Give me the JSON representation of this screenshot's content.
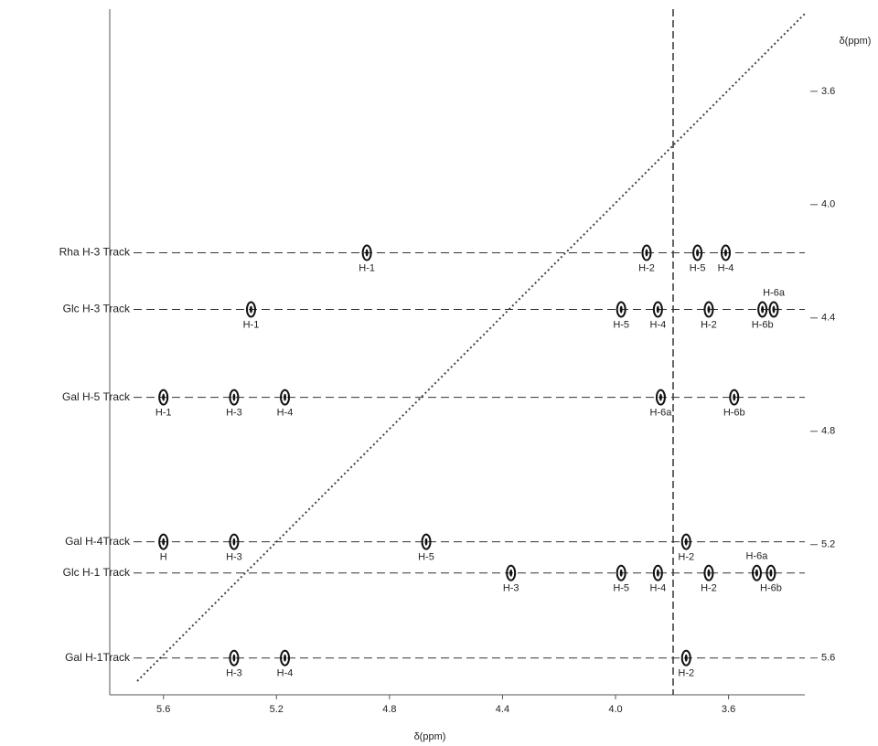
{
  "chart_data": {
    "type": "contour",
    "x_label": "δ(ppm)",
    "y_label": "δ(ppm)",
    "xlim": [
      5.79,
      3.33
    ],
    "ylim": [
      3.31,
      5.73
    ],
    "xticks": [
      5.6,
      5.2,
      4.8,
      4.4,
      {
        "value": 4,
        "label": "4.0"
      },
      3.6
    ],
    "yticks": [
      3.6,
      {
        "value": 4,
        "label": "4.0"
      },
      4.4,
      4.8,
      5.2,
      5.6
    ],
    "color": "#111111",
    "tracks": [
      {
        "name": "Rha H-3 Track",
        "y": 4.17,
        "peaks": [
          {
            "label": "H-1",
            "x": 4.88
          },
          {
            "label": "H-2",
            "x": 3.89
          },
          {
            "label": "H-5",
            "x": 3.71
          },
          {
            "label": "H-4",
            "x": 3.61
          }
        ]
      },
      {
        "name": "Glc H-3 Track",
        "y": 4.37,
        "peaks": [
          {
            "label": "H-1",
            "x": 5.29
          },
          {
            "label": "H-5",
            "x": 3.98
          },
          {
            "label": "H-4",
            "x": 3.85
          },
          {
            "label": "H-2",
            "x": 3.67
          },
          {
            "label": "H-6a",
            "x": 3.44
          },
          {
            "label": "H-6b",
            "x": 3.48
          }
        ]
      },
      {
        "name": "Gal H-5 Track",
        "y": 4.68,
        "peaks": [
          {
            "label": "H-1",
            "x": 5.6
          },
          {
            "label": "H-3",
            "x": 5.35
          },
          {
            "label": "H-4",
            "x": 5.17
          },
          {
            "label": "H-6a",
            "x": 3.84
          },
          {
            "label": "H-6b",
            "x": 3.58
          }
        ]
      },
      {
        "name": "Gal H-4Track",
        "y": 5.19,
        "peaks": [
          {
            "label": "H",
            "x": 5.6
          },
          {
            "label": "H-3",
            "x": 5.35
          },
          {
            "label": "H-5",
            "x": 4.67
          },
          {
            "label": "H-2",
            "x": 3.75
          }
        ]
      },
      {
        "name": "Glc H-1 Track",
        "y": 5.3,
        "peaks": [
          {
            "label": "H-3",
            "x": 4.37
          },
          {
            "label": "H-5",
            "x": 3.98
          },
          {
            "label": "H-4",
            "x": 3.85
          },
          {
            "label": "H-2",
            "x": 3.67
          },
          {
            "label": "H-6a",
            "x": 3.5
          },
          {
            "label": "H-6b",
            "x": 3.45
          }
        ]
      },
      {
        "name": "Gal H-1Track",
        "y": 5.6,
        "peaks": [
          {
            "label": "H-3",
            "x": 5.35
          },
          {
            "label": "H-4",
            "x": 5.17
          },
          {
            "label": "H-2",
            "x": 3.75
          }
        ]
      }
    ]
  }
}
